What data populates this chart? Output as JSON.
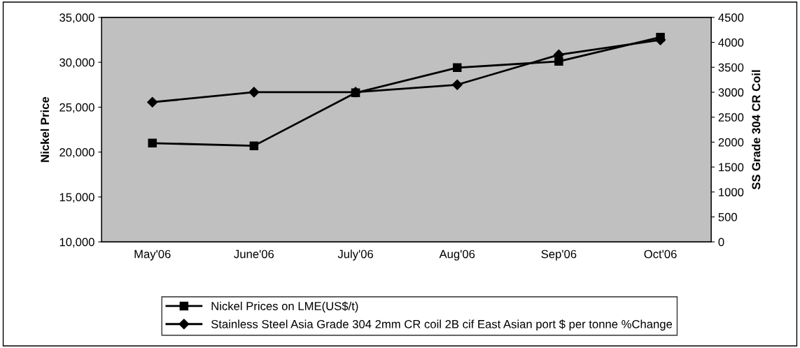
{
  "chart_data": {
    "type": "line",
    "categories": [
      "May'06",
      "June'06",
      "July'06",
      "Aug'06",
      "Sep'06",
      "Oct'06"
    ],
    "series": [
      {
        "name": "Nickel Prices on LME(US$/t)",
        "color": "#000000",
        "marker": "square",
        "values": [
          21000,
          20700,
          26600,
          29400,
          30100,
          32800
        ]
      },
      {
        "name": "Stainless Steel Asia Grade 304 2mm CR coil 2B cif East Asian port $ per tonne %Change",
        "color": "#000000",
        "marker": "diamond",
        "axis": "y2",
        "values": [
          2800,
          3000,
          3000,
          3150,
          3750,
          4050
        ]
      }
    ],
    "ylabel": "Nickel Price",
    "y2label": "SS Grade 304 CR Coil",
    "ylim": [
      10000,
      35000
    ],
    "yticks": [
      {
        "value": 10000,
        "label": "10,000"
      },
      {
        "value": 15000,
        "label": "15,000"
      },
      {
        "value": 20000,
        "label": "20,000"
      },
      {
        "value": 25000,
        "label": "25,000"
      },
      {
        "value": 30000,
        "label": "30,000"
      },
      {
        "value": 35000,
        "label": "35,000"
      }
    ],
    "y2lim": [
      0,
      4500
    ],
    "y2ticks": [
      0,
      500,
      1000,
      1500,
      2000,
      2500,
      3000,
      3500,
      4000,
      4500
    ],
    "grid": false,
    "legend": "bottom",
    "line_style": "solid"
  }
}
